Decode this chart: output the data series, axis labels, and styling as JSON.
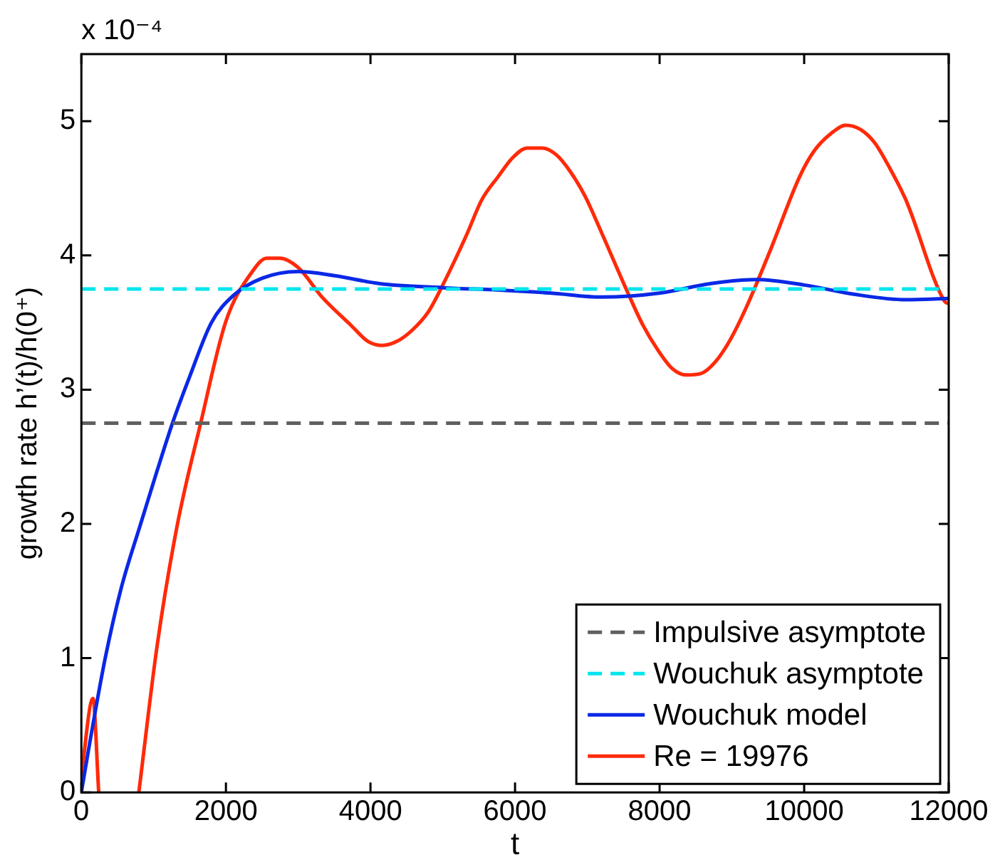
{
  "chart_data": {
    "type": "line",
    "xlabel": "t",
    "ylabel": "growth rate h’(t)/h(0⁺)",
    "annotations": [
      "x 10⁻⁴"
    ],
    "xlim": [
      0,
      12000
    ],
    "xticks": [
      0,
      2000,
      4000,
      6000,
      8000,
      10000,
      12000
    ],
    "ylim": [
      0,
      5.5
    ],
    "yticks": [
      0,
      1,
      2,
      3,
      4,
      5
    ],
    "grid": false,
    "legend": "bottom right",
    "marker": "none",
    "series": [
      {
        "name": "Impulsive asymptote",
        "color": "#606060",
        "line_style": "dashed",
        "x": [
          0,
          12000
        ],
        "values": [
          2.75,
          2.75
        ]
      },
      {
        "name": "Wouchuk asymptote",
        "color": "#00e5ee",
        "line_style": "dashed",
        "x": [
          0,
          12000
        ],
        "values": [
          3.75,
          3.75
        ]
      },
      {
        "name": "Wouchuk model",
        "color": "#0a28e6",
        "line_style": "solid",
        "x": [
          0,
          100,
          330,
          550,
          820,
          1050,
          1260,
          1500,
          1800,
          2100,
          2500,
          3000,
          3500,
          4130,
          5000,
          5870,
          6500,
          7200,
          8000,
          8700,
          9340,
          10000,
          10700,
          11410,
          12000
        ],
        "values": [
          0,
          0.32,
          1.0,
          1.52,
          2.0,
          2.4,
          2.75,
          3.1,
          3.5,
          3.7,
          3.83,
          3.88,
          3.85,
          3.79,
          3.76,
          3.74,
          3.72,
          3.69,
          3.72,
          3.79,
          3.82,
          3.78,
          3.71,
          3.67,
          3.68
        ]
      },
      {
        "name": "Re = 19976",
        "color": "#ff2a0a",
        "line_style": "solid",
        "x": [
          0,
          160,
          240,
          500,
          795,
          1050,
          1330,
          1650,
          2000,
          2365,
          2565,
          2745,
          3000,
          3330,
          3730,
          3965,
          4165,
          4365,
          4570,
          4800,
          5000,
          5335,
          5535,
          5770,
          5970,
          6170,
          6370,
          6570,
          6770,
          6970,
          7205,
          7570,
          7770,
          7970,
          8170,
          8370,
          8570,
          8775,
          8975,
          9205,
          9540,
          9940,
          10140,
          10375,
          10575,
          10775,
          10975,
          11175,
          11410,
          11940,
          12000
        ],
        "values": [
          0.13,
          0.7,
          0,
          null,
          0,
          1.1,
          2.0,
          2.75,
          3.51,
          3.88,
          3.98,
          3.98,
          3.91,
          3.69,
          3.48,
          3.36,
          3.33,
          3.36,
          3.44,
          3.58,
          3.78,
          4.16,
          4.41,
          4.59,
          4.73,
          4.8,
          4.8,
          4.75,
          4.62,
          4.44,
          4.16,
          3.71,
          3.48,
          3.3,
          3.16,
          3.11,
          3.12,
          3.21,
          3.37,
          3.62,
          4.05,
          4.59,
          4.78,
          4.91,
          4.97,
          4.94,
          4.84,
          4.66,
          4.41,
          3.66,
          3.64
        ]
      }
    ]
  }
}
